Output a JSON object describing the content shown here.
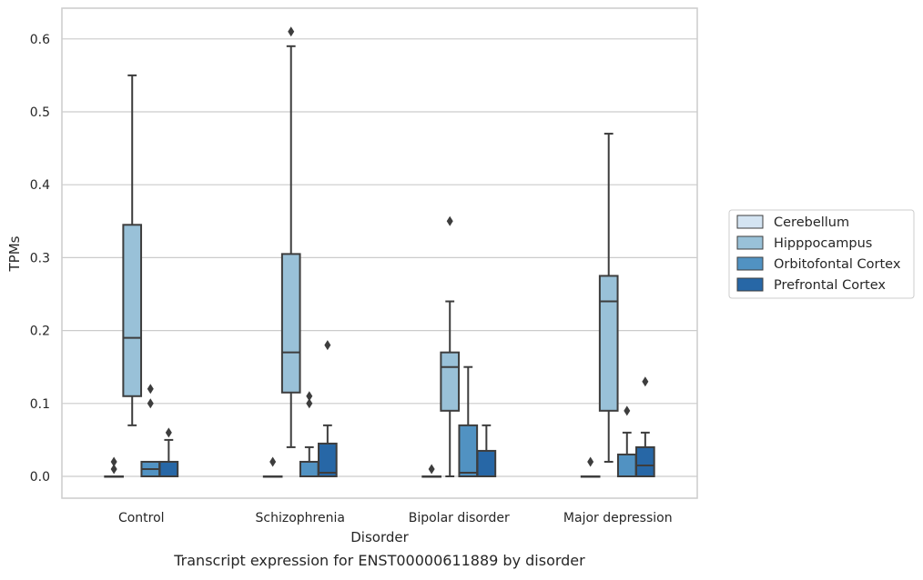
{
  "chart_data": {
    "type": "box",
    "xlabel": "Disorder",
    "ylabel": "TPMs",
    "caption": "Transcript expression for ENST00000611889 by disorder",
    "ylim": [
      -0.03,
      0.64
    ],
    "yticks": [
      "0.0",
      "0.1",
      "0.2",
      "0.3",
      "0.4",
      "0.5",
      "0.6"
    ],
    "grid": "horizontal",
    "legend_position": "right",
    "categories": [
      "Control",
      "Schizophrenia",
      "Bipolar disorder",
      "Major depression"
    ],
    "series": [
      {
        "name": "Cerebellum",
        "color": "#d4e4f2",
        "boxes": [
          {
            "q1": 0,
            "median": 0,
            "q3": 0,
            "whisker_low": 0,
            "whisker_high": 0,
            "outliers": [
              0.01,
              0.02
            ]
          },
          {
            "q1": 0,
            "median": 0,
            "q3": 0,
            "whisker_low": 0,
            "whisker_high": 0,
            "outliers": [
              0.02
            ]
          },
          {
            "q1": 0,
            "median": 0,
            "q3": 0,
            "whisker_low": 0,
            "whisker_high": 0,
            "outliers": [
              0.01
            ]
          },
          {
            "q1": 0,
            "median": 0,
            "q3": 0,
            "whisker_low": 0,
            "whisker_high": 0,
            "outliers": [
              0.02
            ]
          }
        ]
      },
      {
        "name": "Hipppocampus",
        "color": "#99c1d8",
        "boxes": [
          {
            "q1": 0.11,
            "median": 0.19,
            "q3": 0.345,
            "whisker_low": 0.07,
            "whisker_high": 0.55,
            "outliers": []
          },
          {
            "q1": 0.115,
            "median": 0.17,
            "q3": 0.305,
            "whisker_low": 0.04,
            "whisker_high": 0.59,
            "outliers": [
              0.61
            ]
          },
          {
            "q1": 0.09,
            "median": 0.15,
            "q3": 0.17,
            "whisker_low": 0.0,
            "whisker_high": 0.24,
            "outliers": [
              0.35
            ]
          },
          {
            "q1": 0.09,
            "median": 0.24,
            "q3": 0.275,
            "whisker_low": 0.02,
            "whisker_high": 0.47,
            "outliers": []
          }
        ]
      },
      {
        "name": "Orbitofontal Cortex",
        "color": "#5192c2",
        "boxes": [
          {
            "q1": 0,
            "median": 0.01,
            "q3": 0.02,
            "whisker_low": 0,
            "whisker_high": 0.02,
            "outliers": [
              0.1,
              0.12
            ]
          },
          {
            "q1": 0,
            "median": 0.0,
            "q3": 0.02,
            "whisker_low": 0,
            "whisker_high": 0.04,
            "outliers": [
              0.1,
              0.11
            ]
          },
          {
            "q1": 0,
            "median": 0.005,
            "q3": 0.07,
            "whisker_low": 0,
            "whisker_high": 0.15,
            "outliers": []
          },
          {
            "q1": 0,
            "median": 0.0,
            "q3": 0.03,
            "whisker_low": 0,
            "whisker_high": 0.06,
            "outliers": [
              0.09
            ]
          }
        ]
      },
      {
        "name": "Prefrontal Cortex",
        "color": "#2767a6",
        "boxes": [
          {
            "q1": 0,
            "median": 0.0,
            "q3": 0.02,
            "whisker_low": 0,
            "whisker_high": 0.05,
            "outliers": [
              0.06
            ]
          },
          {
            "q1": 0,
            "median": 0.005,
            "q3": 0.045,
            "whisker_low": 0,
            "whisker_high": 0.07,
            "outliers": [
              0.18
            ]
          },
          {
            "q1": 0,
            "median": 0.0,
            "q3": 0.035,
            "whisker_low": 0,
            "whisker_high": 0.07,
            "outliers": []
          },
          {
            "q1": 0,
            "median": 0.015,
            "q3": 0.04,
            "whisker_low": 0,
            "whisker_high": 0.06,
            "outliers": [
              0.13
            ]
          }
        ]
      }
    ]
  }
}
